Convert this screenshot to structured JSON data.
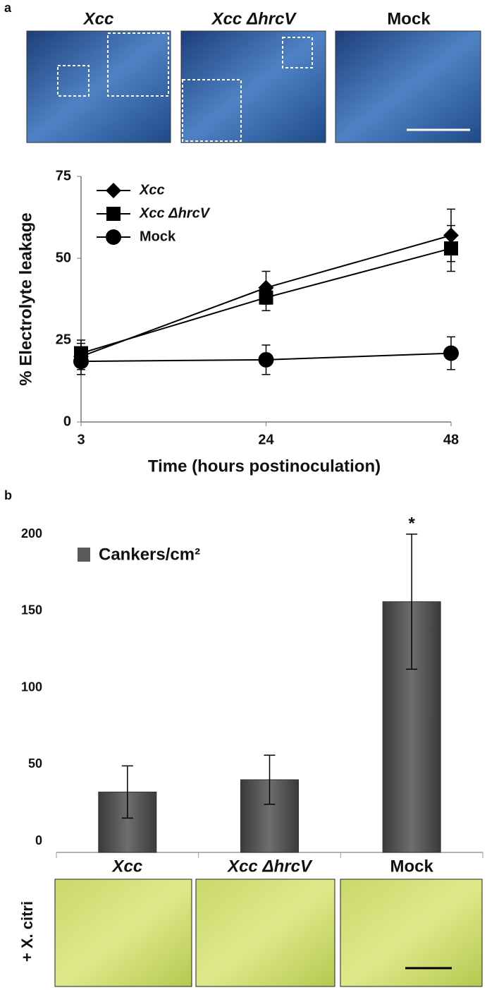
{
  "panel_labels": [
    "a",
    "b"
  ],
  "image_labels": [
    "Xcc",
    "Xcc ΔhrcV",
    "Mock"
  ],
  "side_label": "+ X. citri",
  "chart_data": [
    {
      "type": "line",
      "ylabel": "% Electrolyte leakage",
      "xlabel": "Time (hours postinoculation)",
      "categories": [
        "3",
        "24",
        "48"
      ],
      "ylim": [
        0,
        75
      ],
      "yticks": [
        0,
        25,
        50,
        75
      ],
      "series": [
        {
          "name": "Xcc",
          "color": "#000000",
          "marker": "diamond",
          "values": [
            20,
            41,
            57
          ],
          "errors": [
            4,
            5,
            8
          ]
        },
        {
          "name": "Xcc ΔhrcV",
          "color": "#000000",
          "marker": "square",
          "values": [
            21,
            38,
            53
          ],
          "errors": [
            4,
            4,
            7
          ]
        },
        {
          "name": "Mock",
          "color": "#000000",
          "marker": "circle",
          "values": [
            18.5,
            19,
            21
          ],
          "errors": [
            4,
            4.5,
            5
          ]
        }
      ]
    },
    {
      "type": "bar",
      "categories": [
        "Xcc",
        "Xcc ΔhrcV",
        "Mock"
      ],
      "ylim": [
        0,
        200
      ],
      "yticks": [
        0,
        50,
        100,
        150,
        200
      ],
      "series": [
        {
          "name": "Cankers/cm²",
          "color": "#5a5a5a",
          "values": [
            32,
            40,
            156
          ],
          "errors": [
            17,
            16,
            44
          ]
        }
      ],
      "annotation": "*"
    }
  ]
}
